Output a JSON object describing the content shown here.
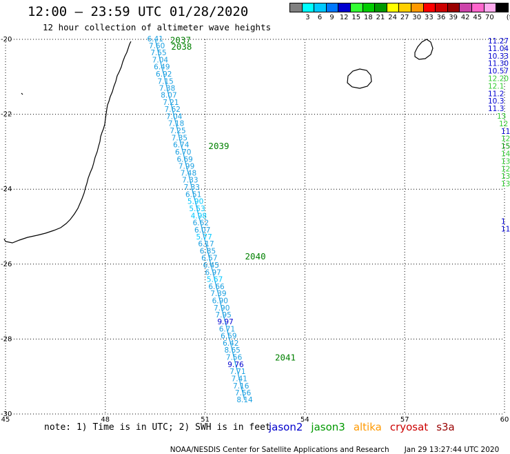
{
  "header": {
    "title": "12:00 — 23:59 UTC 01/28/2020",
    "subtitle": "12 hour collection of altimeter wave heights"
  },
  "legend": {
    "unit": "(ft)",
    "bins": [
      {
        "color": "#808080",
        "label": ""
      },
      {
        "color": "#00ffff",
        "label": "3"
      },
      {
        "color": "#00c8ff",
        "label": "6"
      },
      {
        "color": "#0078ff",
        "label": "9"
      },
      {
        "color": "#0000d0",
        "label": "12"
      },
      {
        "color": "#33ff33",
        "label": "15"
      },
      {
        "color": "#00cc00",
        "label": "18"
      },
      {
        "color": "#009900",
        "label": "21"
      },
      {
        "color": "#ffff00",
        "label": "24"
      },
      {
        "color": "#ffd000",
        "label": "27"
      },
      {
        "color": "#ff9900",
        "label": "30"
      },
      {
        "color": "#ff0000",
        "label": "33"
      },
      {
        "color": "#cc0000",
        "label": "36"
      },
      {
        "color": "#990000",
        "label": "39"
      },
      {
        "color": "#cc44aa",
        "label": "42"
      },
      {
        "color": "#ff66cc",
        "label": "45"
      },
      {
        "color": "#ffaaee",
        "label": "70"
      },
      {
        "color": "#000000",
        "label": ""
      }
    ]
  },
  "map": {
    "lon_range": [
      45,
      60
    ],
    "lat_range": [
      -30,
      -20
    ],
    "lon_labels": [
      "45",
      "48",
      "51",
      "54",
      "57",
      "60"
    ],
    "lat_labels": [
      "-20",
      "-22",
      "-24",
      "-26",
      "-28",
      "-30"
    ],
    "track_color": "#1a9fe0",
    "passes": [
      "2037",
      "2038",
      "2039",
      "2040",
      "2041"
    ],
    "track": [
      {
        "lon": 49.5,
        "lat": -20.0,
        "v": "6.41",
        "c": "#1a9fe0"
      },
      {
        "lon": 49.55,
        "lat": -20.18,
        "v": "7.60",
        "c": "#1a9fe0"
      },
      {
        "lon": 49.6,
        "lat": -20.37,
        "v": "7.55",
        "c": "#1a9fe0"
      },
      {
        "lon": 49.65,
        "lat": -20.56,
        "v": "7.04",
        "c": "#1a9fe0"
      },
      {
        "lon": 49.7,
        "lat": -20.75,
        "v": "6.49",
        "c": "#1a9fe0"
      },
      {
        "lon": 49.76,
        "lat": -20.94,
        "v": "6.92",
        "c": "#1a9fe0"
      },
      {
        "lon": 49.81,
        "lat": -21.13,
        "v": "7.15",
        "c": "#1a9fe0"
      },
      {
        "lon": 49.86,
        "lat": -21.32,
        "v": "7.38",
        "c": "#1a9fe0"
      },
      {
        "lon": 49.91,
        "lat": -21.5,
        "v": "8.07",
        "c": "#1a9fe0"
      },
      {
        "lon": 49.97,
        "lat": -21.69,
        "v": "7.21",
        "c": "#1a9fe0"
      },
      {
        "lon": 50.02,
        "lat": -21.88,
        "v": "7.62",
        "c": "#1a9fe0"
      },
      {
        "lon": 50.07,
        "lat": -22.07,
        "v": "7.04",
        "c": "#1a9fe0"
      },
      {
        "lon": 50.13,
        "lat": -22.26,
        "v": "7.18",
        "c": "#1a9fe0"
      },
      {
        "lon": 50.18,
        "lat": -22.45,
        "v": "7.25",
        "c": "#1a9fe0"
      },
      {
        "lon": 50.23,
        "lat": -22.64,
        "v": "7.35",
        "c": "#1a9fe0"
      },
      {
        "lon": 50.28,
        "lat": -22.83,
        "v": "6.74",
        "c": "#1a9fe0"
      },
      {
        "lon": 50.34,
        "lat": -23.02,
        "v": "6.70",
        "c": "#1a9fe0"
      },
      {
        "lon": 50.39,
        "lat": -23.21,
        "v": "6.69",
        "c": "#1a9fe0"
      },
      {
        "lon": 50.44,
        "lat": -23.4,
        "v": "7.99",
        "c": "#1a9fe0"
      },
      {
        "lon": 50.5,
        "lat": -23.58,
        "v": "7.48",
        "c": "#1a9fe0"
      },
      {
        "lon": 50.55,
        "lat": -23.77,
        "v": "7.33",
        "c": "#1a9fe0"
      },
      {
        "lon": 50.6,
        "lat": -23.96,
        "v": "7.33",
        "c": "#1a9fe0"
      },
      {
        "lon": 50.65,
        "lat": -24.15,
        "v": "6.51",
        "c": "#1a9fe0"
      },
      {
        "lon": 50.71,
        "lat": -24.34,
        "v": "5.90",
        "c": "#00c8ff"
      },
      {
        "lon": 50.76,
        "lat": -24.53,
        "v": "5.53",
        "c": "#00c8ff"
      },
      {
        "lon": 50.81,
        "lat": -24.72,
        "v": "4.98",
        "c": "#00c8ff"
      },
      {
        "lon": 50.87,
        "lat": -24.91,
        "v": "6.62",
        "c": "#1a9fe0"
      },
      {
        "lon": 50.92,
        "lat": -25.1,
        "v": "6.07",
        "c": "#1a9fe0"
      },
      {
        "lon": 50.97,
        "lat": -25.29,
        "v": "5.77",
        "c": "#00c8ff"
      },
      {
        "lon": 51.03,
        "lat": -25.47,
        "v": "6.17",
        "c": "#1a9fe0"
      },
      {
        "lon": 51.08,
        "lat": -25.66,
        "v": "6.85",
        "c": "#1a9fe0"
      },
      {
        "lon": 51.13,
        "lat": -25.85,
        "v": "6.57",
        "c": "#1a9fe0"
      },
      {
        "lon": 51.18,
        "lat": -26.04,
        "v": "6.45",
        "c": "#1a9fe0"
      },
      {
        "lon": 51.24,
        "lat": -26.23,
        "v": "6.97",
        "c": "#1a9fe0"
      },
      {
        "lon": 51.29,
        "lat": -26.42,
        "v": "5.67",
        "c": "#00c8ff"
      },
      {
        "lon": 51.34,
        "lat": -26.61,
        "v": "6.66",
        "c": "#1a9fe0"
      },
      {
        "lon": 51.4,
        "lat": -26.8,
        "v": "7.39",
        "c": "#1a9fe0"
      },
      {
        "lon": 51.45,
        "lat": -26.99,
        "v": "6.90",
        "c": "#1a9fe0"
      },
      {
        "lon": 51.5,
        "lat": -27.18,
        "v": "7.90",
        "c": "#1a9fe0"
      },
      {
        "lon": 51.55,
        "lat": -27.37,
        "v": "7.95",
        "c": "#1a9fe0"
      },
      {
        "lon": 51.61,
        "lat": -27.55,
        "v": "9.97",
        "c": "#0000d0"
      },
      {
        "lon": 51.66,
        "lat": -27.74,
        "v": "6.71",
        "c": "#1a9fe0"
      },
      {
        "lon": 51.71,
        "lat": -27.93,
        "v": "6.59",
        "c": "#1a9fe0"
      },
      {
        "lon": 51.77,
        "lat": -28.12,
        "v": "6.42",
        "c": "#1a9fe0"
      },
      {
        "lon": 51.82,
        "lat": -28.31,
        "v": "8.65",
        "c": "#1a9fe0"
      },
      {
        "lon": 51.87,
        "lat": -28.5,
        "v": "7.56",
        "c": "#1a9fe0"
      },
      {
        "lon": 51.92,
        "lat": -28.69,
        "v": "9.76",
        "c": "#0000d0"
      },
      {
        "lon": 51.98,
        "lat": -28.88,
        "v": "7.71",
        "c": "#1a9fe0"
      },
      {
        "lon": 52.03,
        "lat": -29.07,
        "v": "7.41",
        "c": "#1a9fe0"
      },
      {
        "lon": 52.08,
        "lat": -29.26,
        "v": "7.16",
        "c": "#1a9fe0"
      },
      {
        "lon": 52.14,
        "lat": -29.45,
        "v": "7.56",
        "c": "#1a9fe0"
      },
      {
        "lon": 52.19,
        "lat": -29.63,
        "v": "8.14",
        "c": "#1a9fe0"
      }
    ],
    "edge_values": [
      {
        "v": "11.27",
        "c": "#0000d0"
      },
      {
        "v": "11.04",
        "c": "#0000d0"
      },
      {
        "v": "10.33",
        "c": "#0000d0"
      },
      {
        "v": "11.30",
        "c": "#0000d0"
      },
      {
        "v": "10.57",
        "c": "#0000d0"
      },
      {
        "v": "12.20",
        "c": "#33cc33"
      },
      {
        "v": "12.1",
        "c": "#33cc33"
      },
      {
        "v": "11.2",
        "c": "#0000d0"
      },
      {
        "v": "10.3",
        "c": "#0000d0"
      },
      {
        "v": "11.3",
        "c": "#0000d0"
      },
      {
        "v": "13",
        "c": "#33cc33"
      },
      {
        "v": "12",
        "c": "#33cc33"
      },
      {
        "v": "11",
        "c": "#0000d0"
      },
      {
        "v": "12",
        "c": "#33cc33"
      },
      {
        "v": "15",
        "c": "#009900"
      },
      {
        "v": "14",
        "c": "#33cc33"
      },
      {
        "v": "13",
        "c": "#33cc33"
      },
      {
        "v": "12",
        "c": "#33cc33"
      },
      {
        "v": "13",
        "c": "#33cc33"
      },
      {
        "v": "13",
        "c": "#33cc33"
      },
      {
        "v": "1",
        "c": "#0000d0"
      },
      {
        "v": "11",
        "c": "#0000d0"
      }
    ]
  },
  "note": "note: 1) Time is in UTC; 2) SWH is in feet",
  "satellites": [
    {
      "name": "jason2",
      "color": "#0000cc"
    },
    {
      "name": "jason3",
      "color": "#009900"
    },
    {
      "name": "altika",
      "color": "#ff9900"
    },
    {
      "name": "cryosat",
      "color": "#cc0000"
    },
    {
      "name": "s3a",
      "color": "#990000"
    }
  ],
  "footer": {
    "center": "NOAA/NESDIS Center for Satellite Applications and Research",
    "timestamp": "Jan 29 13:27:44 UTC 2020"
  }
}
